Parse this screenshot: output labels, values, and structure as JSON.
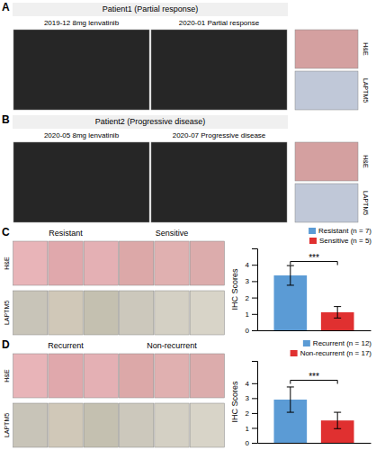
{
  "chart_data": [
    {
      "type": "image",
      "panel_label": "A",
      "title": "Patient1 (Partial response)",
      "subtitles": [
        "2019-12 8mg lenvatinib",
        "2020-01 Partial response"
      ],
      "row_labels": [
        "H&E",
        "LAPTM5"
      ]
    },
    {
      "type": "image",
      "panel_label": "B",
      "title": "Patient2 (Progressive disease)",
      "subtitles": [
        "2020-05 8mg lenvatinib",
        "2020-07 Progressive disease"
      ],
      "row_labels": [
        "H&E",
        "LAPTM5"
      ]
    },
    {
      "type": "bar",
      "panel_label": "C",
      "column_titles": [
        "Resistant",
        "Sensitive"
      ],
      "row_labels": [
        "H&E",
        "LAPTM5"
      ],
      "categories": [
        null
      ],
      "series": [
        {
          "name": "Resistant (n = 7)",
          "color": "#5b9bd5",
          "values": [
            3.35
          ],
          "errors": [
            0.6
          ]
        },
        {
          "name": "Sensitive (n = 5)",
          "color": "#e03030",
          "values": [
            1.1
          ],
          "errors": [
            0.35
          ]
        }
      ],
      "y_label": "IHC Scores",
      "ylim": [
        0,
        5.0
      ],
      "yticks": [
        0,
        1,
        2,
        3,
        4
      ],
      "legend": "upper right",
      "tick_labels": "y",
      "annotations": [
        {
          "text": "***",
          "y": 4.2
        }
      ]
    },
    {
      "type": "bar",
      "panel_label": "D",
      "column_titles": [
        "Recurrent",
        "Non-recurrent"
      ],
      "row_labels": [
        "H&E",
        "LAPTM5"
      ],
      "categories": [
        null
      ],
      "series": [
        {
          "name": "Recurrent (n = 12)",
          "color": "#5b9bd5",
          "values": [
            2.9
          ],
          "errors": [
            0.85
          ]
        },
        {
          "name": "Non-recurrent (n = 17)",
          "color": "#e03030",
          "values": [
            1.5
          ],
          "errors": [
            0.55
          ]
        }
      ],
      "y_label": "IHC Scores",
      "ylim": [
        0,
        5.5
      ],
      "yticks": [
        0,
        1,
        2,
        3,
        4
      ],
      "legend": "upper right",
      "tick_labels": "y",
      "annotations": [
        {
          "text": "***",
          "y": 4.2
        }
      ]
    }
  ]
}
